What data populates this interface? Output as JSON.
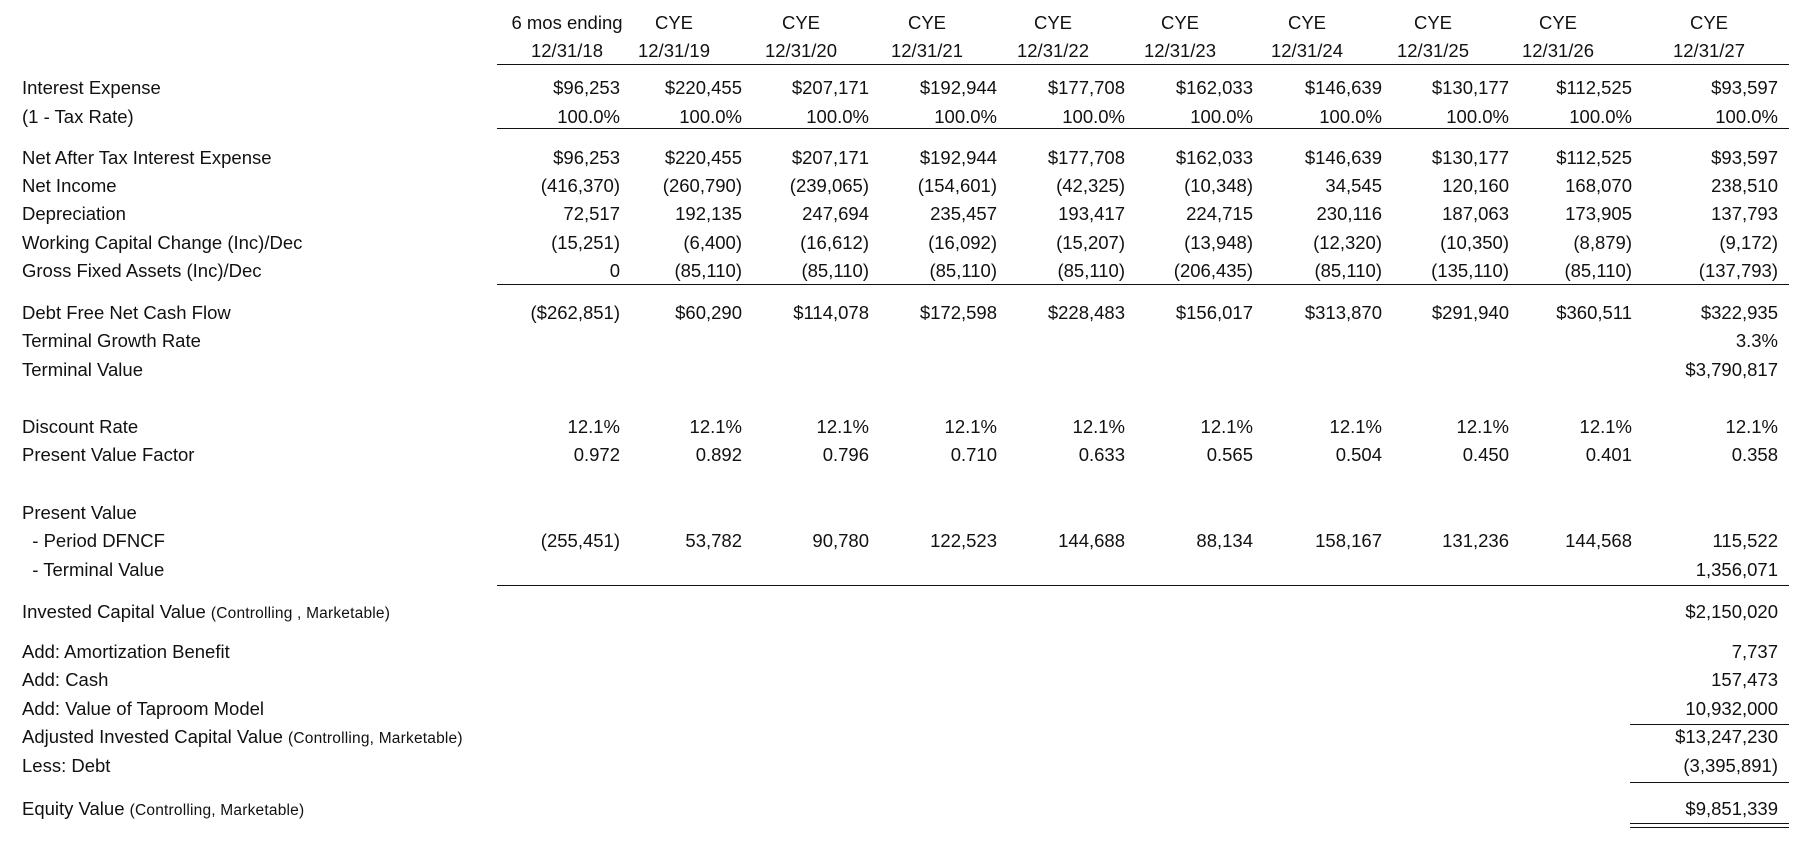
{
  "columns": [
    {
      "line1": "6 mos ending",
      "line2": "12/31/18"
    },
    {
      "line1": "CYE",
      "line2": "12/31/19"
    },
    {
      "line1": "CYE",
      "line2": "12/31/20"
    },
    {
      "line1": "CYE",
      "line2": "12/31/21"
    },
    {
      "line1": "CYE",
      "line2": "12/31/22"
    },
    {
      "line1": "CYE",
      "line2": "12/31/23"
    },
    {
      "line1": "CYE",
      "line2": "12/31/24"
    },
    {
      "line1": "CYE",
      "line2": "12/31/25"
    },
    {
      "line1": "CYE",
      "line2": "12/31/26"
    },
    {
      "line1": "CYE",
      "line2": "12/31/27"
    }
  ],
  "rows": [
    {
      "label": "Interest Expense",
      "values": [
        "$96,253",
        "$220,455",
        "$207,171",
        "$192,944",
        "$177,708",
        "$162,033",
        "$146,639",
        "$130,177",
        "$112,525",
        "$93,597"
      ]
    },
    {
      "label": "(1 - Tax Rate)",
      "values": [
        "100.0%",
        "100.0%",
        "100.0%",
        "100.0%",
        "100.0%",
        "100.0%",
        "100.0%",
        "100.0%",
        "100.0%",
        "100.0%"
      ]
    },
    {
      "label": "Net After Tax Interest Expense",
      "values": [
        "$96,253",
        "$220,455",
        "$207,171",
        "$192,944",
        "$177,708",
        "$162,033",
        "$146,639",
        "$130,177",
        "$112,525",
        "$93,597"
      ]
    },
    {
      "label": "Net Income",
      "values": [
        "(416,370)",
        "(260,790)",
        "(239,065)",
        "(154,601)",
        "(42,325)",
        "(10,348)",
        "34,545",
        "120,160",
        "168,070",
        "238,510"
      ]
    },
    {
      "label": "Depreciation",
      "values": [
        "72,517",
        "192,135",
        "247,694",
        "235,457",
        "193,417",
        "224,715",
        "230,116",
        "187,063",
        "173,905",
        "137,793"
      ]
    },
    {
      "label": "Working Capital Change (Inc)/Dec",
      "values": [
        "(15,251)",
        "(6,400)",
        "(16,612)",
        "(16,092)",
        "(15,207)",
        "(13,948)",
        "(12,320)",
        "(10,350)",
        "(8,879)",
        "(9,172)"
      ]
    },
    {
      "label": "Gross Fixed Assets (Inc)/Dec",
      "values": [
        "0",
        "(85,110)",
        "(85,110)",
        "(85,110)",
        "(85,110)",
        "(206,435)",
        "(85,110)",
        "(135,110)",
        "(85,110)",
        "(137,793)"
      ]
    },
    {
      "label": "Debt Free Net Cash Flow",
      "values": [
        "($262,851)",
        "$60,290",
        "$114,078",
        "$172,598",
        "$228,483",
        "$156,017",
        "$313,870",
        "$291,940",
        "$360,511",
        "$322,935"
      ]
    },
    {
      "label": "Terminal Growth Rate",
      "values": [
        "",
        "",
        "",
        "",
        "",
        "",
        "",
        "",
        "",
        "3.3%"
      ]
    },
    {
      "label": "Terminal Value",
      "values": [
        "",
        "",
        "",
        "",
        "",
        "",
        "",
        "",
        "",
        "$3,790,817"
      ]
    },
    {
      "label": "Discount Rate",
      "values": [
        "12.1%",
        "12.1%",
        "12.1%",
        "12.1%",
        "12.1%",
        "12.1%",
        "12.1%",
        "12.1%",
        "12.1%",
        "12.1%"
      ]
    },
    {
      "label": "Present Value Factor",
      "values": [
        "0.972",
        "0.892",
        "0.796",
        "0.710",
        "0.633",
        "0.565",
        "0.504",
        "0.450",
        "0.401",
        "0.358"
      ]
    },
    {
      "label": "Present Value",
      "values": [
        "",
        "",
        "",
        "",
        "",
        "",
        "",
        "",
        "",
        ""
      ]
    },
    {
      "label": "  - Period DFNCF",
      "values": [
        "(255,451)",
        "53,782",
        "90,780",
        "122,523",
        "144,688",
        "88,134",
        "158,167",
        "131,236",
        "144,568",
        "115,522"
      ]
    },
    {
      "label": "  - Terminal Value",
      "values": [
        "",
        "",
        "",
        "",
        "",
        "",
        "",
        "",
        "",
        "1,356,071"
      ]
    }
  ],
  "summary": [
    {
      "label": "Invested Capital Value",
      "qualifier": "(Controlling , Marketable)",
      "value": "$2,150,020"
    },
    {
      "label": "Add:  Amortization Benefit",
      "qualifier": "",
      "value": "7,737"
    },
    {
      "label": "Add:  Cash",
      "qualifier": "",
      "value": "157,473"
    },
    {
      "label": "Add: Value of Taproom Model",
      "qualifier": "",
      "value": "10,932,000"
    },
    {
      "label": "Adjusted Invested Capital Value",
      "qualifier": "(Controlling, Marketable)",
      "value": "$13,247,230"
    },
    {
      "label": "Less: Debt",
      "qualifier": "",
      "value": "(3,395,891)"
    },
    {
      "label": "Equity Value",
      "qualifier": "(Controlling, Marketable)",
      "value": "$9,851,339"
    }
  ]
}
